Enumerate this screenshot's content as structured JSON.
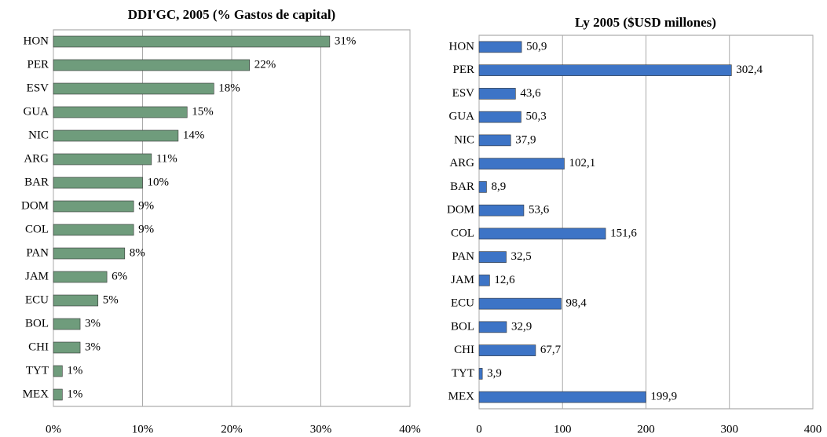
{
  "chart_data": [
    {
      "type": "bar",
      "orientation": "horizontal",
      "title": "DDI'GC, 2005 (%  Gastos de capital)",
      "categories": [
        "HON",
        "PER",
        "ESV",
        "GUA",
        "NIC",
        "ARG",
        "BAR",
        "DOM",
        "COL",
        "PAN",
        "JAM",
        "ECU",
        "BOL",
        "CHI",
        "TYT",
        "MEX"
      ],
      "values": [
        31,
        22,
        18,
        15,
        14,
        11,
        10,
        9,
        9,
        8,
        6,
        5,
        3,
        3,
        1,
        1
      ],
      "value_labels": [
        "31%",
        "22%",
        "18%",
        "15%",
        "14%",
        "11%",
        "10%",
        "9%",
        "9%",
        "8%",
        "6%",
        "5%",
        "3%",
        "3%",
        "1%",
        "1%"
      ],
      "color": "#6f9c7c",
      "xlim": [
        0,
        40
      ],
      "xticks": [
        {
          "value": 0,
          "label": "0%"
        },
        {
          "value": 10,
          "label": "10%"
        },
        {
          "value": 20,
          "label": "20%"
        },
        {
          "value": 30,
          "label": "30%"
        },
        {
          "value": 40,
          "label": "40%"
        }
      ],
      "grid": true
    },
    {
      "type": "bar",
      "orientation": "horizontal",
      "title": "Ly 2005 ($USD millones)",
      "categories": [
        "HON",
        "PER",
        "ESV",
        "GUA",
        "NIC",
        "ARG",
        "BAR",
        "DOM",
        "COL",
        "PAN",
        "JAM",
        "ECU",
        "BOL",
        "CHI",
        "TYT",
        "MEX"
      ],
      "values": [
        50.9,
        302.4,
        43.6,
        50.3,
        37.9,
        102.1,
        8.9,
        53.6,
        151.6,
        32.5,
        12.6,
        98.4,
        32.9,
        67.7,
        3.9,
        199.9
      ],
      "value_labels": [
        "50,9",
        "302,4",
        "43,6",
        "50,3",
        "37,9",
        "102,1",
        "8,9",
        "53,6",
        "151,6",
        "32,5",
        "12,6",
        "98,4",
        "32,9",
        "67,7",
        "3,9",
        "199,9"
      ],
      "color": "#3d74c6",
      "xlim": [
        0,
        400
      ],
      "xticks": [
        0,
        100,
        200,
        300,
        400
      ],
      "grid": true
    }
  ]
}
